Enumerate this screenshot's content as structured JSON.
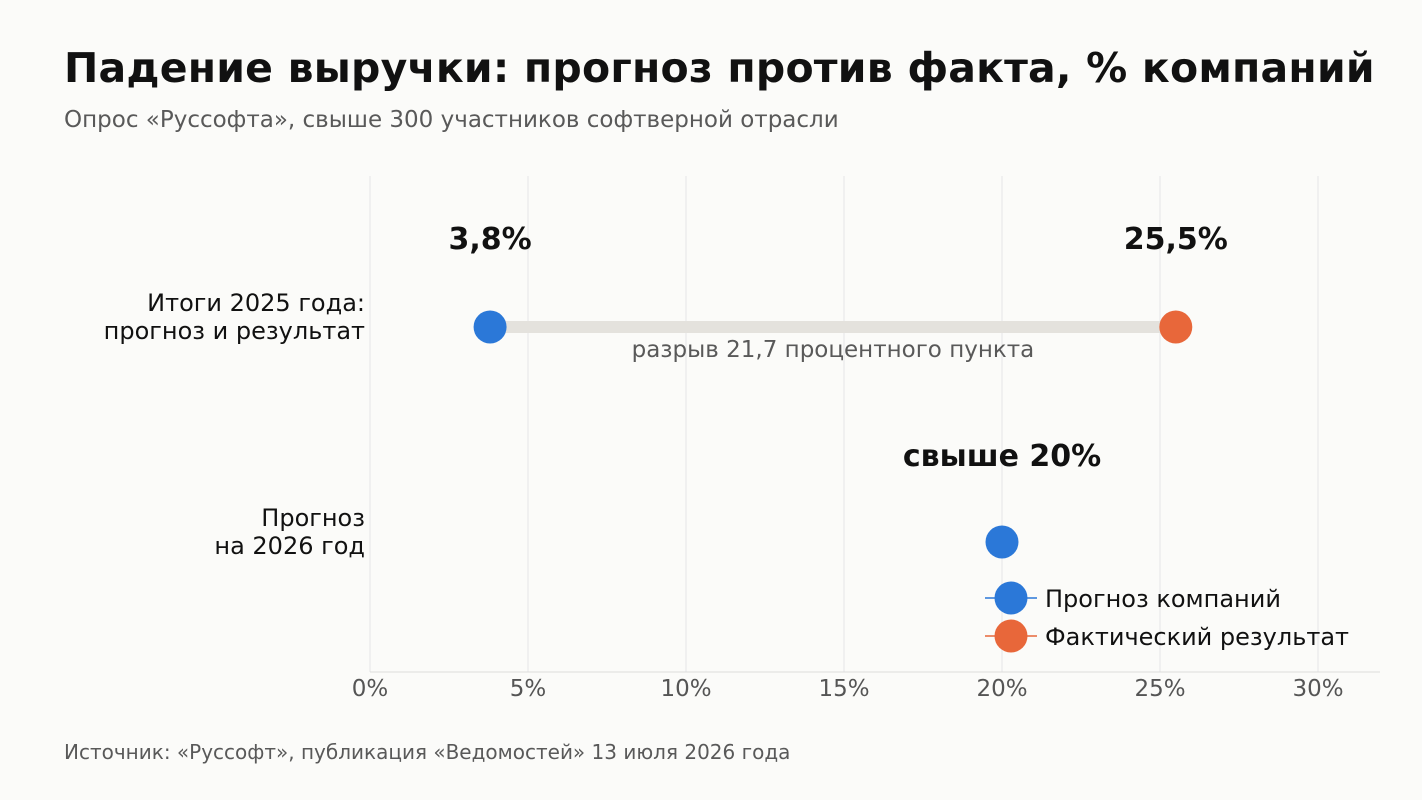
{
  "title": "Падение выручки: прогноз против факта, % компаний",
  "subtitle": "Опрос «Руссофта», свыше 300 участников софтверной отрасли",
  "source": "Источник: «Руссофт», публикация «Ведомостей» 13 июля 2026 года",
  "chart_data": {
    "type": "dumbbell",
    "xlim": [
      0,
      32
    ],
    "xticks": [
      0,
      5,
      10,
      15,
      20,
      25,
      30
    ],
    "xtick_labels": [
      "0%",
      "5%",
      "10%",
      "15%",
      "20%",
      "25%",
      "30%"
    ],
    "grid": true,
    "legend_position": "bottom-right",
    "categories": [
      {
        "label_lines": [
          "Итоги 2025 года:",
          "прогноз и результат"
        ],
        "forecast": 3.8,
        "actual": 25.5
      },
      {
        "label_lines": [
          "Прогноз",
          "на 2026 год"
        ],
        "forecast": 20,
        "actual": null
      }
    ],
    "data_labels": {
      "forecast_2025": "3,8%",
      "actual_2025": "25,5%",
      "forecast_2026": "свыше 20%"
    },
    "gap_annotation": "разрыв 21,7 процентного пункта",
    "series": [
      {
        "name": "Прогноз компаний",
        "color": "#2b78d8"
      },
      {
        "name": "Фактический результат",
        "color": "#e8673a"
      }
    ],
    "connector_color": "#e4e2dd"
  }
}
